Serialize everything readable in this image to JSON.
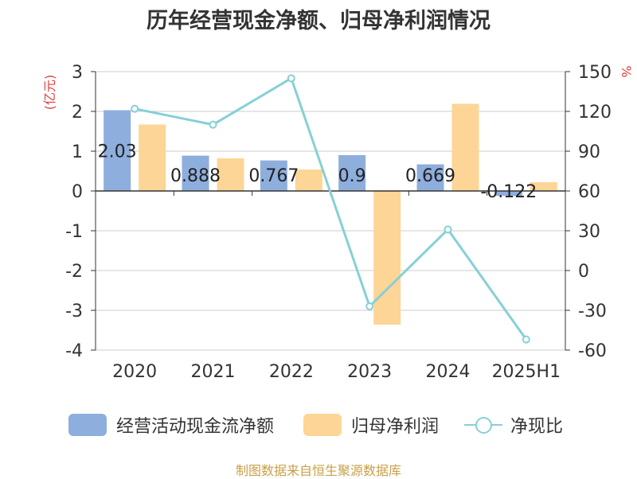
{
  "chart_data": {
    "type": "bar",
    "title": "历年经营现金净额、归母净利润情况",
    "categories": [
      "2020",
      "2021",
      "2022",
      "2023",
      "2024",
      "2025H1"
    ],
    "y_left": {
      "unit_label": "(亿元)",
      "ylim": [
        -4,
        3
      ],
      "ticks": [
        3,
        2,
        1,
        0,
        -1,
        -2,
        -3,
        -4
      ]
    },
    "y_right": {
      "unit_label": "%",
      "ylim": [
        -60,
        150
      ],
      "ticks": [
        150,
        120,
        90,
        60,
        30,
        0,
        -30,
        -60
      ]
    },
    "series": [
      {
        "name": "经营活动现金流净额",
        "type": "bar",
        "axis": "left",
        "color": "#8eaedd",
        "values": [
          2.03,
          0.888,
          0.767,
          0.9,
          0.669,
          -0.122
        ],
        "labels": [
          "2.03",
          "0.888",
          "0.767",
          "0.9",
          "0.669",
          "-0.122"
        ]
      },
      {
        "name": "归母净利润",
        "type": "bar",
        "axis": "left",
        "color": "#fdd596",
        "values": [
          1.67,
          0.82,
          0.54,
          -3.36,
          2.19,
          0.22
        ]
      },
      {
        "name": "净现比",
        "type": "line",
        "axis": "right",
        "color": "#86d0d6",
        "values": [
          122,
          110,
          145,
          -27,
          31,
          -52
        ]
      }
    ],
    "grid": true,
    "legend_position": "bottom"
  },
  "source_note": "制图数据来自恒生聚源数据库"
}
